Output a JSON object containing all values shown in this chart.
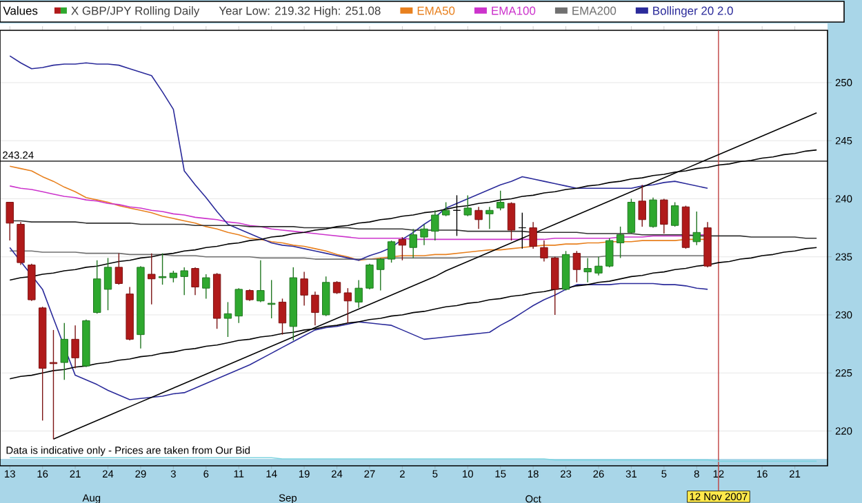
{
  "chart_data": {
    "type": "candlestick",
    "legend_title": "Values",
    "subtitle": "Year Low: 219.32 High: 251.08",
    "annotations": [
      "Data is indicative only - Prices are taken from Our Bid",
      "Aug",
      "Sep",
      "Oct"
    ],
    "categories": [
      "13",
      null,
      null,
      "16",
      null,
      null,
      "21",
      null,
      null,
      "24",
      null,
      null,
      "29",
      null,
      null,
      "3",
      null,
      null,
      "6",
      null,
      null,
      "11",
      null,
      null,
      "14",
      null,
      null,
      "19",
      null,
      null,
      "24",
      null,
      null,
      "27",
      null,
      null,
      "2",
      null,
      null,
      "5",
      null,
      null,
      "10",
      null,
      null,
      "15",
      null,
      null,
      "18",
      null,
      null,
      "23",
      null,
      null,
      "26",
      null,
      null,
      "31",
      null,
      null,
      "5",
      null,
      null,
      "8",
      null,
      "12",
      null,
      null,
      null,
      "16",
      null,
      null,
      "21",
      null,
      null
    ],
    "ylim": [
      217,
      254.5
    ],
    "yticks": [
      220,
      225,
      230,
      235,
      240,
      245,
      250
    ],
    "grid": "y",
    "legend": "top",
    "marker": "none",
    "ref_lines": [
      {
        "axis": "y",
        "value": 243.24,
        "label": "243.24",
        "color": "#000000"
      },
      {
        "axis": "x",
        "value": "12",
        "label": "12 Nov 2007",
        "color": "#c04040"
      }
    ],
    "series": [
      {
        "name": "X GBP/JPY Rolling Daily",
        "colors": [
          "#b01a1a",
          "#b01a1a",
          "#b01a1a",
          "#b01a1a",
          "#b01a1a",
          "#2ea82e",
          "#b01a1a",
          "#2ea82e",
          "#2ea82e",
          "#2ea82e",
          "#b01a1a",
          "#b01a1a",
          "#2ea82e",
          "#b01a1a",
          "#2ea82e",
          "#2ea82e",
          "#2ea82e",
          "#b01a1a",
          "#2ea82e",
          "#b01a1a",
          "#2ea82e",
          "#2ea82e",
          "#b01a1a",
          "#2ea82e",
          "#2ea82e",
          "#b01a1a",
          "#2ea82e",
          "#b01a1a",
          "#b01a1a",
          "#2ea82e",
          "#b01a1a",
          "#b01a1a",
          "#2ea82e",
          "#2ea82e",
          "#2ea82e",
          "#2ea82e",
          "#b01a1a",
          "#2ea82e",
          "#2ea82e",
          "#2ea82e",
          "#2ea82e",
          "#000000",
          "#2ea82e",
          "#b01a1a",
          "#2ea82e",
          "#2ea82e",
          "#b01a1a",
          "#000000",
          "#b01a1a",
          "#b01a1a",
          "#b01a1a",
          "#2ea82e",
          "#b01a1a",
          "#2ea82e",
          "#2ea82e",
          "#2ea82e",
          "#2ea82e",
          "#2ea82e",
          "#b01a1a",
          "#2ea82e",
          "#b01a1a",
          "#2ea82e",
          "#b01a1a",
          "#2ea82e",
          "#b01a1a",
          null,
          null,
          null,
          null,
          null,
          null,
          null,
          null,
          null,
          null
        ],
        "ohlc": [
          [
            239.7,
            239.7,
            236.4,
            237.9
          ],
          [
            237.8,
            238.0,
            234.3,
            234.5
          ],
          [
            234.3,
            234.4,
            231.2,
            231.3
          ],
          [
            230.6,
            230.7,
            220.9,
            225.4
          ],
          [
            225.9,
            228.7,
            219.3,
            225.8
          ],
          [
            225.9,
            229.3,
            224.4,
            227.9
          ],
          [
            227.9,
            229.1,
            225.4,
            226.3
          ],
          [
            225.6,
            229.6,
            225.5,
            229.5
          ],
          [
            230.2,
            234.7,
            230.1,
            233.1
          ],
          [
            232.2,
            234.9,
            230.4,
            234.1
          ],
          [
            234.1,
            235.3,
            232.6,
            232.7
          ],
          [
            231.8,
            232.4,
            227.8,
            227.9
          ],
          [
            228.3,
            234.2,
            227.1,
            234.1
          ],
          [
            233.5,
            235.3,
            230.9,
            233.1
          ],
          [
            233.2,
            235.3,
            232.6,
            233.3
          ],
          [
            233.2,
            233.8,
            232.8,
            233.6
          ],
          [
            233.3,
            234.1,
            231.7,
            233.8
          ],
          [
            234.0,
            234.1,
            231.7,
            232.4
          ],
          [
            232.3,
            233.5,
            231.4,
            233.2
          ],
          [
            233.5,
            233.6,
            228.8,
            229.7
          ],
          [
            229.7,
            231.1,
            228.1,
            230.1
          ],
          [
            229.9,
            232.3,
            229.3,
            232.2
          ],
          [
            232.1,
            232.2,
            231.2,
            231.3
          ],
          [
            231.2,
            234.7,
            231.1,
            232.1
          ],
          [
            230.9,
            233.0,
            229.7,
            231.0
          ],
          [
            231.1,
            231.4,
            228.3,
            229.3
          ],
          [
            229.0,
            234.1,
            227.8,
            233.2
          ],
          [
            233.1,
            233.7,
            230.8,
            231.7
          ],
          [
            231.7,
            232.0,
            229.1,
            230.2
          ],
          [
            230.0,
            233.3,
            229.9,
            232.8
          ],
          [
            232.8,
            232.9,
            231.8,
            231.9
          ],
          [
            231.9,
            232.3,
            229.3,
            231.2
          ],
          [
            231.1,
            233.0,
            230.6,
            232.3
          ],
          [
            232.3,
            234.4,
            232.2,
            234.3
          ],
          [
            233.9,
            234.9,
            232.1,
            234.8
          ],
          [
            234.8,
            236.4,
            234.5,
            236.3
          ],
          [
            236.5,
            236.7,
            234.7,
            236.0
          ],
          [
            235.8,
            237.4,
            234.9,
            236.9
          ],
          [
            236.7,
            237.8,
            236.0,
            237.4
          ],
          [
            237.2,
            239.0,
            236.4,
            238.6
          ],
          [
            238.6,
            239.7,
            238.5,
            239.0
          ],
          [
            239.0,
            240.3,
            236.8,
            239.0
          ],
          [
            238.6,
            240.3,
            238.5,
            239.2
          ],
          [
            239.0,
            239.3,
            237.4,
            238.2
          ],
          [
            238.7,
            239.3,
            237.4,
            239.0
          ],
          [
            239.2,
            240.7,
            239.0,
            239.7
          ],
          [
            239.6,
            239.7,
            236.4,
            237.3
          ],
          [
            237.5,
            238.8,
            235.7,
            237.5
          ],
          [
            237.5,
            238.0,
            235.7,
            235.9
          ],
          [
            235.8,
            236.4,
            234.6,
            234.9
          ],
          [
            234.9,
            235.0,
            230.0,
            232.2
          ],
          [
            232.2,
            235.5,
            232.1,
            235.2
          ],
          [
            235.3,
            235.5,
            232.8,
            233.9
          ],
          [
            233.7,
            234.9,
            232.8,
            234.0
          ],
          [
            233.6,
            235.0,
            233.4,
            234.2
          ],
          [
            234.2,
            236.6,
            234.1,
            236.4
          ],
          [
            236.2,
            237.6,
            234.9,
            236.9
          ],
          [
            237.1,
            240.0,
            237.0,
            239.7
          ],
          [
            239.8,
            241.2,
            237.6,
            238.2
          ],
          [
            237.6,
            240.1,
            237.5,
            239.9
          ],
          [
            239.9,
            240.0,
            237.0,
            237.8
          ],
          [
            237.7,
            239.7,
            237.6,
            239.4
          ],
          [
            239.3,
            239.4,
            235.7,
            235.8
          ],
          [
            236.3,
            238.9,
            236.0,
            237.1
          ],
          [
            237.5,
            238.0,
            234.1,
            234.2
          ],
          null,
          null,
          null,
          null,
          null,
          null,
          null,
          null,
          null,
          null
        ]
      },
      {
        "name": "EMA50",
        "type": "line",
        "color": "#e8801e",
        "values": [
          242.8,
          242.6,
          242.4,
          241.9,
          241.5,
          241.0,
          240.6,
          240.1,
          239.9,
          239.7,
          239.4,
          239.2,
          239.0,
          238.8,
          238.5,
          238.3,
          238.1,
          237.9,
          237.6,
          237.4,
          237.1,
          236.9,
          236.6,
          236.5,
          236.3,
          236.2,
          236.0,
          235.9,
          235.7,
          235.5,
          235.2,
          235.0,
          234.7,
          234.8,
          234.9,
          235.0,
          235.1,
          235.1,
          235.1,
          235.2,
          235.2,
          235.3,
          235.4,
          235.5,
          235.6,
          235.6,
          235.7,
          235.8,
          235.9,
          236.0,
          236.0,
          236.1,
          236.1,
          236.2,
          236.2,
          236.3,
          236.3,
          236.3,
          236.4,
          236.4,
          236.4,
          236.4,
          236.5,
          236.5,
          236.5,
          null,
          null,
          null,
          null,
          null,
          null,
          null,
          null,
          null,
          null
        ]
      },
      {
        "name": "EMA100",
        "type": "line",
        "color": "#cc33cc",
        "values": [
          241.1,
          240.9,
          240.8,
          240.6,
          240.4,
          240.2,
          240.1,
          239.9,
          239.8,
          239.6,
          239.5,
          239.3,
          239.2,
          239.0,
          238.9,
          238.7,
          238.6,
          238.4,
          238.3,
          238.2,
          238.0,
          237.9,
          237.7,
          237.6,
          237.4,
          237.3,
          237.2,
          237.1,
          237.0,
          236.9,
          236.8,
          236.7,
          236.6,
          236.6,
          236.6,
          236.6,
          236.6,
          236.5,
          236.5,
          236.5,
          236.5,
          236.5,
          236.5,
          236.5,
          236.5,
          236.5,
          236.5,
          236.5,
          236.5,
          236.5,
          236.6,
          236.6,
          236.6,
          236.6,
          236.6,
          236.6,
          236.7,
          236.7,
          236.7,
          236.8,
          236.8,
          236.8,
          236.8,
          236.9,
          236.9,
          null,
          null,
          null,
          null,
          null,
          null,
          null,
          null,
          null,
          null
        ]
      },
      {
        "name": "EMA200",
        "type": "line",
        "color": "#707070",
        "values": [
          235.5,
          235.5,
          235.5,
          235.4,
          235.4,
          235.4,
          235.4,
          235.3,
          235.3,
          235.3,
          235.3,
          235.2,
          235.2,
          235.2,
          235.2,
          235.1,
          235.1,
          235.1,
          235.0,
          235.0,
          235.0,
          235.0,
          235.0,
          234.9,
          234.9,
          234.9,
          234.9,
          234.9,
          234.8,
          234.8,
          234.8,
          234.8,
          234.8,
          234.8,
          234.8,
          234.9,
          234.9,
          234.9,
          234.9,
          234.9,
          234.9,
          234.9,
          235.0,
          235.0,
          235.0,
          235.0,
          235.0,
          235.0,
          235.0,
          235.0,
          235.0,
          235.0,
          235.0,
          235.0,
          235.0,
          235.1,
          235.1,
          235.1,
          235.1,
          235.1,
          235.1,
          235.1,
          235.1,
          235.1,
          235.1,
          null,
          null,
          null,
          null,
          null,
          null,
          null,
          null,
          null,
          null
        ]
      },
      {
        "name": "Bollinger 20 2.0",
        "type": "line",
        "color": "#2a2a9a",
        "values": [
          252.3,
          251.7,
          251.2,
          251.3,
          251.5,
          251.6,
          251.6,
          251.7,
          251.6,
          251.6,
          251.5,
          251.2,
          250.9,
          250.6,
          249.2,
          247.7,
          242.4,
          241.2,
          240.1,
          238.9,
          237.8,
          237.4,
          237.0,
          236.6,
          236.2,
          236.0,
          235.9,
          235.7,
          235.5,
          235.3,
          235.1,
          234.9,
          234.7,
          235.1,
          235.4,
          235.8,
          236.5,
          237.1,
          237.8,
          238.4,
          239.2,
          239.6,
          240.0,
          240.4,
          240.8,
          241.2,
          241.5,
          241.9,
          241.7,
          241.5,
          241.3,
          241.1,
          240.9,
          240.9,
          240.9,
          240.9,
          240.9,
          240.9,
          241.1,
          241.2,
          241.4,
          241.5,
          241.3,
          241.1,
          240.9,
          null,
          null,
          null,
          null,
          null,
          null,
          null,
          null,
          null,
          null
        ]
      },
      {
        "type": "line",
        "color": "#2a2a9a",
        "values": [
          235.8,
          234.6,
          233.4,
          232.2,
          229.7,
          null,
          224.8,
          224.4,
          224.0,
          223.5,
          223.1,
          222.7,
          222.8,
          222.9,
          223.0,
          223.2,
          223.3,
          223.7,
          224.1,
          224.5,
          224.9,
          225.3,
          225.7,
          226.2,
          226.7,
          227.2,
          227.7,
          228.2,
          228.7,
          228.9,
          229.0,
          229.2,
          229.4,
          229.3,
          229.2,
          229.1,
          228.7,
          228.3,
          227.9,
          228.0,
          228.1,
          228.2,
          228.3,
          228.4,
          228.5,
          229.1,
          229.6,
          230.2,
          230.8,
          231.3,
          231.7,
          232.2,
          232.6,
          232.6,
          232.6,
          232.6,
          232.7,
          232.7,
          232.7,
          232.7,
          232.6,
          232.6,
          232.5,
          232.3,
          232.2,
          null,
          null,
          null,
          null,
          null,
          null,
          null,
          null,
          null,
          null
        ]
      },
      {
        "type": "line",
        "color": "#303030",
        "values": [
          238.1,
          238.1,
          238.0,
          238.0,
          238.0,
          238.0,
          238.0,
          237.9,
          237.9,
          237.9,
          237.9,
          237.9,
          237.8,
          237.8,
          237.8,
          237.8,
          237.8,
          237.7,
          237.7,
          237.7,
          237.7,
          237.7,
          237.6,
          237.6,
          237.6,
          237.6,
          237.6,
          237.5,
          237.5,
          237.5,
          237.5,
          237.5,
          237.4,
          237.4,
          237.4,
          237.4,
          237.4,
          237.3,
          237.3,
          237.3,
          237.3,
          237.3,
          237.2,
          237.2,
          237.2,
          237.2,
          237.2,
          237.2,
          237.1,
          237.1,
          237.1,
          237.1,
          237.1,
          237.0,
          237.0,
          237.0,
          237.0,
          237.0,
          236.9,
          236.9,
          236.9,
          236.9,
          236.9,
          236.8,
          236.8,
          236.8,
          236.8,
          236.8,
          236.7,
          236.7,
          236.7,
          236.7,
          236.7,
          236.6,
          236.6
        ]
      },
      {
        "type": "line",
        "color": "#000000",
        "values": [
          233.0,
          233.2,
          233.3,
          233.5,
          233.6,
          233.8,
          233.9,
          234.1,
          234.2,
          234.4,
          234.6,
          234.7,
          234.9,
          235.0,
          235.2,
          235.3,
          235.5,
          235.6,
          235.8,
          235.9,
          236.1,
          236.2,
          236.4,
          236.5,
          236.7,
          236.8,
          237.0,
          237.1,
          237.3,
          237.4,
          237.6,
          237.7,
          237.9,
          238.0,
          238.2,
          238.3,
          238.5,
          238.6,
          238.8,
          238.9,
          239.1,
          239.3,
          239.4,
          239.6,
          239.7,
          239.9,
          240.0,
          240.2,
          240.3,
          240.5,
          240.6,
          240.8,
          240.9,
          241.1,
          241.2,
          241.4,
          241.5,
          241.7,
          241.8,
          242.0,
          242.1,
          242.3,
          242.4,
          242.6,
          242.7,
          242.9,
          243.0,
          243.2,
          243.3,
          243.5,
          243.6,
          243.8,
          243.9,
          244.1,
          244.2
        ]
      },
      {
        "type": "line",
        "color": "#000000",
        "values": [
          224.5,
          224.7,
          224.8,
          225.0,
          225.2,
          225.3,
          225.5,
          225.6,
          225.8,
          225.9,
          226.1,
          226.2,
          226.4,
          226.5,
          226.7,
          226.8,
          227.0,
          227.1,
          227.3,
          227.4,
          227.6,
          227.8,
          227.9,
          228.1,
          228.2,
          228.4,
          228.5,
          228.7,
          228.8,
          229.0,
          229.1,
          229.3,
          229.4,
          229.6,
          229.7,
          229.9,
          230.0,
          230.2,
          230.3,
          230.5,
          230.7,
          230.8,
          231.0,
          231.1,
          231.3,
          231.4,
          231.6,
          231.7,
          231.9,
          232.0,
          232.2,
          232.3,
          232.5,
          232.6,
          232.8,
          232.9,
          233.1,
          233.3,
          233.4,
          233.6,
          233.7,
          233.9,
          234.0,
          234.2,
          234.3,
          234.5,
          234.6,
          234.8,
          234.9,
          235.1,
          235.2,
          235.4,
          235.5,
          235.7,
          235.8
        ]
      },
      {
        "type": "line",
        "color": "#000000",
        "values": [
          null,
          null,
          null,
          null,
          219.3,
          219.7,
          220.1,
          220.5,
          220.9,
          221.3,
          221.7,
          222.1,
          222.5,
          222.9,
          223.3,
          223.7,
          224.1,
          224.5,
          224.9,
          225.3,
          225.7,
          226.1,
          226.5,
          226.9,
          227.3,
          227.7,
          228.1,
          228.5,
          228.9,
          229.3,
          229.7,
          230.1,
          230.5,
          230.9,
          231.3,
          231.7,
          232.1,
          232.5,
          232.9,
          233.3,
          233.8,
          234.2,
          234.6,
          235.0,
          235.4,
          235.8,
          236.2,
          236.6,
          237.0,
          237.4,
          237.8,
          238.2,
          238.6,
          239.0,
          239.4,
          239.8,
          240.2,
          240.6,
          241.0,
          241.4,
          241.8,
          242.2,
          242.6,
          243.0,
          243.4,
          243.8,
          244.2,
          244.6,
          245.0,
          245.4,
          245.8,
          246.2,
          246.6,
          247.0,
          247.4
        ]
      },
      {
        "type": "line",
        "color": "#7fd4e0",
        "values": [
          217.7,
          217.7,
          217.7,
          217.7,
          217.7,
          217.7,
          217.7,
          217.7,
          217.7,
          217.7,
          217.7,
          217.7,
          217.7,
          217.7,
          217.7,
          217.7,
          217.7,
          217.7,
          217.7,
          217.7,
          217.7,
          217.7,
          217.7,
          217.7,
          217.7,
          217.6,
          217.6,
          217.6,
          217.6,
          217.6,
          217.6,
          217.6,
          217.6,
          217.6,
          217.6,
          217.6,
          217.6,
          217.6,
          217.6,
          217.6,
          217.6,
          217.6,
          217.6,
          217.6,
          217.6,
          217.6,
          217.6,
          217.6,
          217.6,
          217.6,
          217.5,
          217.5,
          217.5,
          217.5,
          217.5,
          217.5,
          217.5,
          217.5,
          217.5,
          217.5,
          217.5,
          217.5,
          217.5,
          217.5,
          217.5,
          217.4,
          217.4,
          217.4,
          217.4,
          217.4,
          217.4,
          217.4,
          217.4,
          217.4,
          217.4
        ]
      }
    ]
  }
}
